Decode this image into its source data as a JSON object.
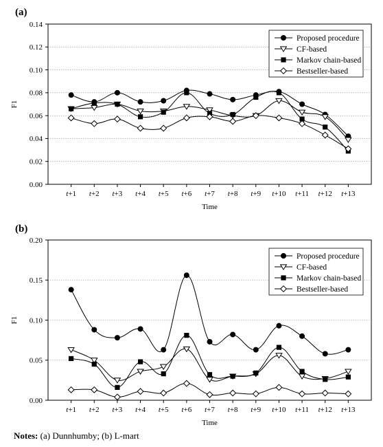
{
  "notes": {
    "label": "Notes:",
    "text": "(a) Dunnhumby; (b) L-mart"
  },
  "chart_data": [
    {
      "type": "line",
      "panel_label": "(a)",
      "xlabel": "Time",
      "ylabel": "F1",
      "categories": [
        "t+1",
        "t+2",
        "t+3",
        "t+4",
        "t+5",
        "t+6",
        "t+7",
        "t+8",
        "t+9",
        "t+10",
        "t+11",
        "t+12",
        "t+13"
      ],
      "ylim": [
        0,
        0.14
      ],
      "yticks": [
        "0.00",
        "0.02",
        "0.04",
        "0.06",
        "0.08",
        "0.10",
        "0.12",
        "0.14"
      ],
      "ytick_values": [
        0,
        0.02,
        0.04,
        0.06,
        0.08,
        0.1,
        0.12,
        0.14
      ],
      "grid": "horizontal dotted",
      "legend": "top-right",
      "series": [
        {
          "name": "Proposed procedure",
          "marker": "filled-circle",
          "values": [
            0.078,
            0.072,
            0.08,
            0.072,
            0.073,
            0.082,
            0.079,
            0.074,
            0.078,
            0.081,
            0.07,
            0.061,
            0.042
          ]
        },
        {
          "name": "CF-based",
          "marker": "open-triangle-down",
          "values": [
            0.066,
            0.067,
            0.07,
            0.064,
            0.064,
            0.068,
            0.065,
            0.06,
            0.06,
            0.073,
            0.063,
            0.059,
            0.039
          ]
        },
        {
          "name": "Markov chain-based",
          "marker": "filled-square",
          "values": [
            0.066,
            0.071,
            0.07,
            0.059,
            0.063,
            0.08,
            0.062,
            0.061,
            0.076,
            0.08,
            0.057,
            0.05,
            0.029
          ]
        },
        {
          "name": "Bestseller-based",
          "marker": "open-diamond",
          "values": [
            0.058,
            0.053,
            0.057,
            0.049,
            0.049,
            0.058,
            0.059,
            0.055,
            0.06,
            0.058,
            0.053,
            0.043,
            0.031
          ]
        }
      ]
    },
    {
      "type": "line",
      "panel_label": "(b)",
      "xlabel": "Time",
      "ylabel": "F1",
      "categories": [
        "t+1",
        "t+2",
        "t+3",
        "t+4",
        "t+5",
        "t+6",
        "t+7",
        "t+8",
        "t+9",
        "t+10",
        "t+11",
        "t+12",
        "t+13"
      ],
      "ylim": [
        0,
        0.2
      ],
      "yticks": [
        "0.00",
        "0.05",
        "0.10",
        "0.15",
        "0.20"
      ],
      "ytick_values": [
        0,
        0.05,
        0.1,
        0.15,
        0.2
      ],
      "grid": "horizontal dotted",
      "legend": "top-right",
      "series": [
        {
          "name": "Proposed procedure",
          "marker": "filled-circle",
          "values": [
            0.138,
            0.088,
            0.078,
            0.089,
            0.063,
            0.156,
            0.073,
            0.082,
            0.063,
            0.093,
            0.08,
            0.058,
            0.063
          ]
        },
        {
          "name": "CF-based",
          "marker": "open-triangle-down",
          "values": [
            0.063,
            0.05,
            0.025,
            0.036,
            0.042,
            0.064,
            0.026,
            0.03,
            0.033,
            0.056,
            0.03,
            0.027,
            0.036
          ]
        },
        {
          "name": "Markov chain-based",
          "marker": "filled-square",
          "values": [
            0.052,
            0.045,
            0.016,
            0.048,
            0.033,
            0.081,
            0.032,
            0.03,
            0.034,
            0.066,
            0.036,
            0.026,
            0.029
          ]
        },
        {
          "name": "Bestseller-based",
          "marker": "open-diamond",
          "values": [
            0.013,
            0.013,
            0.004,
            0.011,
            0.009,
            0.021,
            0.007,
            0.009,
            0.008,
            0.016,
            0.008,
            0.009,
            0.008
          ]
        }
      ]
    }
  ]
}
